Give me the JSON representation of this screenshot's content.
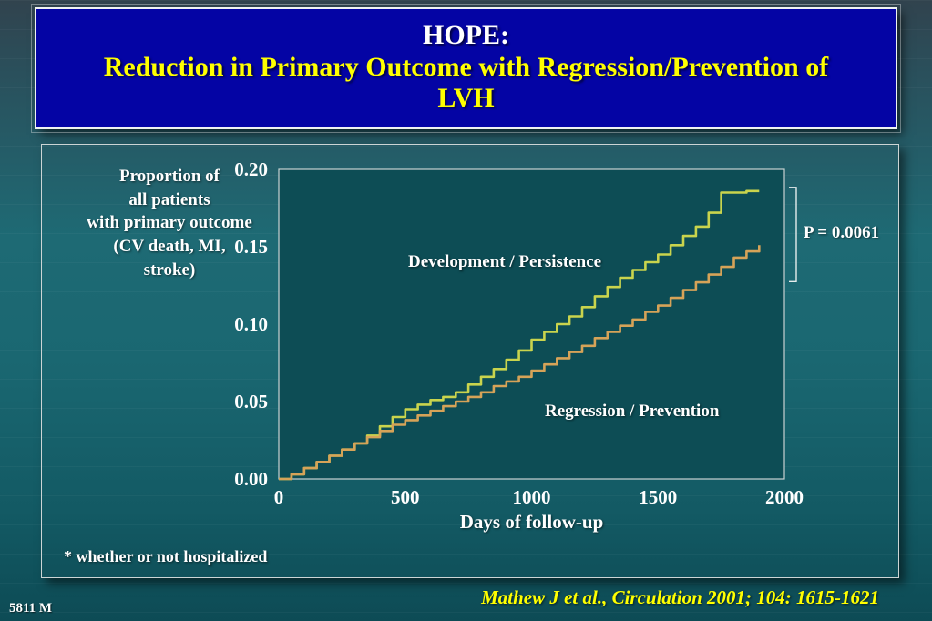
{
  "slide": {
    "title_line1": "HOPE:",
    "title_line2": "Reduction in Primary Outcome with Regression/Prevention of\nLVH",
    "footnote": "* whether or not hospitalized",
    "citation": "Mathew J et al., Circulation 2001; 104: 1615-1621",
    "slide_number": "5811 M"
  },
  "colors": {
    "title_bg": "#0404a4",
    "title_text_primary": "#ffffff",
    "title_text_accent": "#ffff00",
    "slide_bg_teal": "#1e6a74",
    "plot_bg": "#0d4d55",
    "development_line": "#c9d44d",
    "regression_line": "#d6a358",
    "citation_text": "#ffff00"
  },
  "chart_data": {
    "type": "line",
    "title": "",
    "xlabel": "Days of follow-up",
    "ylabel": "Proportion of\nall patients\nwith primary outcome\n(CV death, MI,\nstroke)",
    "xlim": [
      0,
      2000
    ],
    "ylim": [
      0,
      0.2
    ],
    "x_ticks": [
      0,
      500,
      1000,
      1500,
      2000
    ],
    "y_ticks": [
      "0.00",
      "0.05",
      "0.10",
      "0.15",
      "0.20"
    ],
    "grid": false,
    "legend": "labels-inside-plot",
    "annotation": "P = 0.0061",
    "x": [
      0,
      50,
      100,
      150,
      200,
      250,
      300,
      350,
      400,
      450,
      500,
      550,
      600,
      650,
      700,
      750,
      800,
      850,
      900,
      950,
      1000,
      1050,
      1100,
      1150,
      1200,
      1250,
      1300,
      1350,
      1400,
      1450,
      1500,
      1550,
      1600,
      1650,
      1700,
      1750,
      1800,
      1850,
      1900
    ],
    "series": [
      {
        "name": "Development / Persistence",
        "color": "#c9d44d",
        "values": [
          0.0,
          0.003,
          0.007,
          0.011,
          0.015,
          0.019,
          0.023,
          0.028,
          0.034,
          0.04,
          0.045,
          0.048,
          0.051,
          0.053,
          0.056,
          0.061,
          0.066,
          0.071,
          0.077,
          0.083,
          0.09,
          0.095,
          0.1,
          0.105,
          0.111,
          0.118,
          0.124,
          0.13,
          0.135,
          0.14,
          0.145,
          0.151,
          0.157,
          0.163,
          0.172,
          0.185,
          0.185,
          0.186,
          0.186
        ]
      },
      {
        "name": "Regression / Prevention",
        "color": "#d6a358",
        "values": [
          0.0,
          0.003,
          0.007,
          0.011,
          0.015,
          0.019,
          0.023,
          0.027,
          0.031,
          0.035,
          0.038,
          0.041,
          0.044,
          0.047,
          0.05,
          0.053,
          0.056,
          0.06,
          0.063,
          0.066,
          0.07,
          0.074,
          0.078,
          0.082,
          0.086,
          0.091,
          0.095,
          0.099,
          0.103,
          0.108,
          0.112,
          0.117,
          0.122,
          0.127,
          0.132,
          0.137,
          0.143,
          0.147,
          0.151
        ]
      }
    ]
  }
}
